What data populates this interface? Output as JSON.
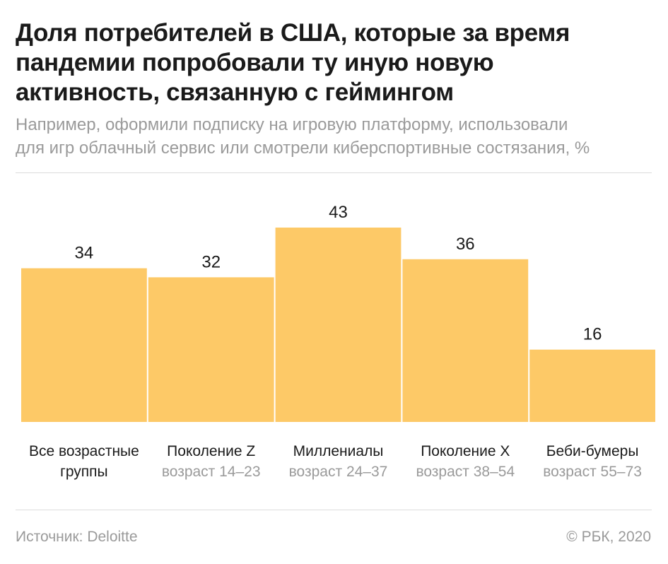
{
  "title_lines": [
    "Доля потребителей в США, которые за время",
    "пандемии попробовали ту иную новую",
    "активность, связанную с геймингом"
  ],
  "subtitle_lines": [
    "Например, оформили подписку на игровую платформу, использовали",
    "для игр облачный сервис или смотрели киберспортивные состязания, %"
  ],
  "chart_data": {
    "type": "bar",
    "title": "Доля потребителей в США, которые за время пандемии попробовали ту иную новую активность, связанную с геймингом",
    "subtitle": "Например, оформили подписку на игровую платформу, использовали для игр облачный сервис или смотрели киберспортивные состязания, %",
    "categories": [
      {
        "name_lines": [
          "Все возрастные",
          "группы"
        ],
        "sub": ""
      },
      {
        "name_lines": [
          "Поколение Z"
        ],
        "sub": "возраст 14–23"
      },
      {
        "name_lines": [
          "Миллениалы"
        ],
        "sub": "возраст 24–37"
      },
      {
        "name_lines": [
          "Поколение X"
        ],
        "sub": "возраст 38–54"
      },
      {
        "name_lines": [
          "Беби-бумеры"
        ],
        "sub": "возраст 55–73"
      }
    ],
    "values": [
      34,
      32,
      43,
      36,
      16
    ],
    "bar_color": "#fdc967",
    "ylim": [
      0,
      43
    ],
    "grid": false,
    "legend": "none"
  },
  "footer": {
    "source": "Источник: Deloitte",
    "copyright": "© РБК, 2020"
  }
}
